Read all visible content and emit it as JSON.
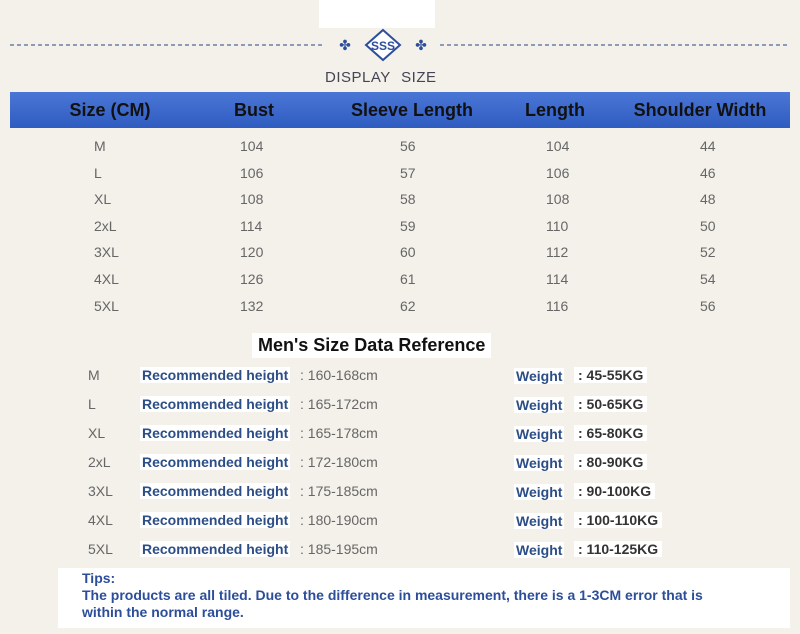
{
  "header": {
    "title": "DISPLAY SIZE"
  },
  "size_table": {
    "columns": [
      "Size (CM)",
      "Bust",
      "Sleeve Length",
      "Length",
      "Shoulder Width"
    ],
    "rows": [
      [
        "M",
        "104",
        "56",
        "104",
        "44"
      ],
      [
        "L",
        "106",
        "57",
        "106",
        "46"
      ],
      [
        "XL",
        "108",
        "58",
        "108",
        "48"
      ],
      [
        "2xL",
        "114",
        "59",
        "110",
        "50"
      ],
      [
        "3XL",
        "120",
        "60",
        "112",
        "52"
      ],
      [
        "4XL",
        "126",
        "61",
        "114",
        "54"
      ],
      [
        "5XL",
        "132",
        "62",
        "116",
        "56"
      ]
    ]
  },
  "reference": {
    "title": "Men's Size Data Reference",
    "rows": [
      {
        "size": "M",
        "height_label": "Recommended height",
        "height": ": 160-168cm",
        "weight_label": "Weight",
        "weight": ": 45-55KG"
      },
      {
        "size": "L",
        "height_label": "Recommended height",
        "height": ": 165-172cm",
        "weight_label": "Weight",
        "weight": ": 50-65KG"
      },
      {
        "size": "XL",
        "height_label": "Recommended height",
        "height": ": 165-178cm",
        "weight_label": "Weight",
        "weight": ": 65-80KG"
      },
      {
        "size": "2xL",
        "height_label": "Recommended height",
        "height": ": 172-180cm",
        "weight_label": "Weight",
        "weight": ": 80-90KG"
      },
      {
        "size": "3XL",
        "height_label": "Recommended height",
        "height": ": 175-185cm",
        "weight_label": "Weight",
        "weight": ": 90-100KG"
      },
      {
        "size": "4XL",
        "height_label": "Recommended height",
        "height": ": 180-190cm",
        "weight_label": "Weight",
        "weight": ": 100-110KG"
      },
      {
        "size": "5XL",
        "height_label": "Recommended height",
        "height": ": 185-195cm",
        "weight_label": "Weight",
        "weight": ": 110-125KG"
      }
    ]
  },
  "tips": {
    "title": "Tips:",
    "text": "The products are all tiled. Due to the difference in measurement, there is a 1-3CM error that is within the normal range."
  }
}
